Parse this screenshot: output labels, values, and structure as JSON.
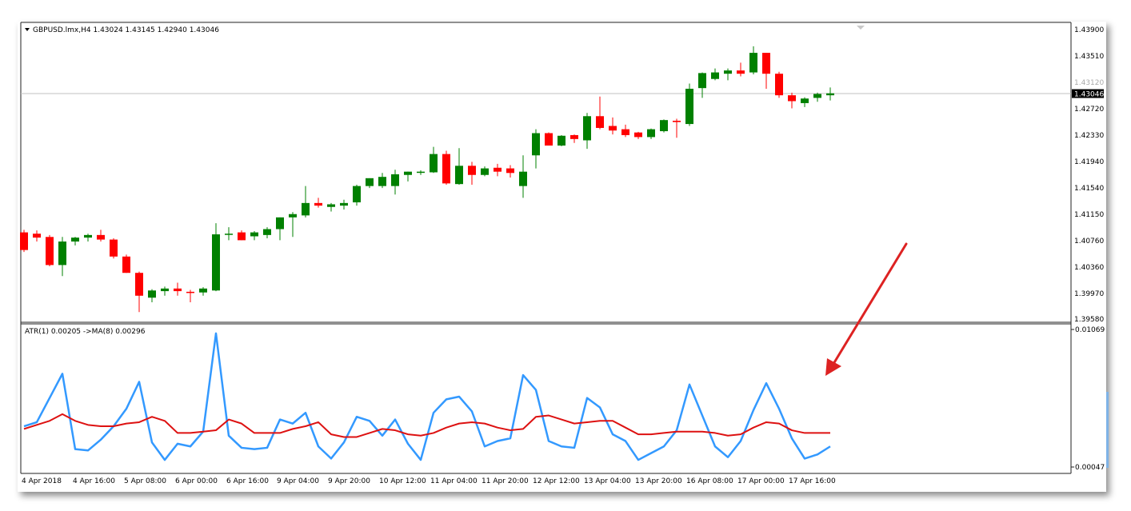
{
  "window": {
    "symbol_header": "GBPUSD.lmx,H4  1.43024 1.43145 1.42940 1.43046"
  },
  "price_axis": {
    "labels": [
      "1.43900",
      "1.43510",
      "1.42720",
      "1.42330",
      "1.41940",
      "1.41540",
      "1.41150",
      "1.40760",
      "1.40360",
      "1.39970",
      "1.39580"
    ],
    "current_price_label": "1.43046",
    "hidden_label": "1.43120"
  },
  "indicator": {
    "header": "ATR(1) 0.00205  ->MA(8) 0.00296",
    "axis_labels": [
      "0.01069",
      "0.00047"
    ]
  },
  "time_axis": {
    "labels": [
      "4 Apr 2018",
      "4 Apr 16:00",
      "5 Apr 08:00",
      "6 Apr 00:00",
      "6 Apr 16:00",
      "9 Apr 04:00",
      "9 Apr 20:00",
      "10 Apr 12:00",
      "11 Apr 04:00",
      "11 Apr 20:00",
      "12 Apr 12:00",
      "13 Apr 04:00",
      "13 Apr 20:00",
      "16 Apr 08:00",
      "17 Apr 00:00",
      "17 Apr 16:00"
    ]
  },
  "colors": {
    "bull": "#008000",
    "bear": "#ff0000",
    "atr_line": "#3399ff",
    "ma_line": "#dd1111",
    "arrow": "#dd2222"
  },
  "chart_data": [
    {
      "type": "candlestick",
      "title": "GBPUSD.lmx,H4",
      "timeframe": "H4",
      "ylim": [
        1.3958,
        1.4402
      ],
      "current_price": 1.43046,
      "ohlc": [
        [
          1.4092,
          1.4096,
          1.4062,
          1.4065
        ],
        [
          1.409,
          1.4095,
          1.4078,
          1.4084
        ],
        [
          1.4085,
          1.4088,
          1.404,
          1.4042
        ],
        [
          1.4042,
          1.4085,
          1.4025,
          1.4078
        ],
        [
          1.4078,
          1.4085,
          1.4072,
          1.4084
        ],
        [
          1.4084,
          1.409,
          1.4078,
          1.4088
        ],
        [
          1.4088,
          1.4096,
          1.4078,
          1.4081
        ],
        [
          1.4081,
          1.4083,
          1.4052,
          1.4055
        ],
        [
          1.4055,
          1.4058,
          1.403,
          1.403
        ],
        [
          1.403,
          1.4032,
          1.397,
          1.3995
        ],
        [
          1.3992,
          1.4005,
          1.3985,
          1.4003
        ],
        [
          1.4002,
          1.4009,
          1.3995,
          1.4006
        ],
        [
          1.4006,
          1.4015,
          1.3995,
          1.4002
        ],
        [
          1.4001,
          1.4004,
          1.3985,
          1.4
        ],
        [
          1.4,
          1.4008,
          1.3995,
          1.4006
        ],
        [
          1.4003,
          1.4106,
          1.4002,
          1.4089
        ],
        [
          1.4089,
          1.41,
          1.408,
          1.409
        ],
        [
          1.4092,
          1.4095,
          1.408,
          1.408
        ],
        [
          1.4086,
          1.4094,
          1.408,
          1.4092
        ],
        [
          1.4088,
          1.41,
          1.4083,
          1.4097
        ],
        [
          1.4097,
          1.4115,
          1.408,
          1.4115
        ],
        [
          1.4115,
          1.4123,
          1.4085,
          1.412
        ],
        [
          1.4118,
          1.4163,
          1.4115,
          1.4137
        ],
        [
          1.4137,
          1.4145,
          1.413,
          1.4133
        ],
        [
          1.4131,
          1.4137,
          1.4124,
          1.4135
        ],
        [
          1.4133,
          1.4142,
          1.4127,
          1.4137
        ],
        [
          1.4138,
          1.4165,
          1.4133,
          1.4163
        ],
        [
          1.4163,
          1.4175,
          1.416,
          1.4175
        ],
        [
          1.4163,
          1.4183,
          1.416,
          1.4177
        ],
        [
          1.4163,
          1.4188,
          1.415,
          1.4181
        ],
        [
          1.418,
          1.4185,
          1.417,
          1.4185
        ],
        [
          1.4184,
          1.4187,
          1.418,
          1.4185
        ],
        [
          1.4184,
          1.4223,
          1.4183,
          1.4212
        ],
        [
          1.4212,
          1.4217,
          1.4165,
          1.4167
        ],
        [
          1.4166,
          1.4221,
          1.4165,
          1.4194
        ],
        [
          1.4194,
          1.42,
          1.4165,
          1.418
        ],
        [
          1.418,
          1.4193,
          1.4178,
          1.419
        ],
        [
          1.4191,
          1.4197,
          1.4178,
          1.4185
        ],
        [
          1.419,
          1.4195,
          1.4176,
          1.4183
        ],
        [
          1.4163,
          1.421,
          1.4145,
          1.4185
        ],
        [
          1.421,
          1.425,
          1.419,
          1.4244
        ],
        [
          1.4244,
          1.4245,
          1.4225,
          1.4225
        ],
        [
          1.4225,
          1.4241,
          1.4224,
          1.424
        ],
        [
          1.4241,
          1.4242,
          1.4229,
          1.4235
        ],
        [
          1.4233,
          1.4275,
          1.422,
          1.427
        ],
        [
          1.427,
          1.43,
          1.425,
          1.4252
        ],
        [
          1.4255,
          1.4268,
          1.4242,
          1.4248
        ],
        [
          1.425,
          1.4257,
          1.4238,
          1.4241
        ],
        [
          1.4245,
          1.4246,
          1.4235,
          1.4238
        ],
        [
          1.4238,
          1.4251,
          1.4235,
          1.425
        ],
        [
          1.4247,
          1.4265,
          1.4245,
          1.4264
        ],
        [
          1.4263,
          1.4266,
          1.4237,
          1.4261
        ],
        [
          1.4258,
          1.432,
          1.4255,
          1.4312
        ],
        [
          1.4313,
          1.4337,
          1.4298,
          1.4336
        ],
        [
          1.4327,
          1.4343,
          1.4325,
          1.4337
        ],
        [
          1.4335,
          1.4343,
          1.4325,
          1.434
        ],
        [
          1.434,
          1.4352,
          1.4331,
          1.4335
        ],
        [
          1.4337,
          1.4377,
          1.4334,
          1.4367
        ],
        [
          1.4367,
          1.4367,
          1.4312,
          1.4335
        ],
        [
          1.4335,
          1.4338,
          1.4298,
          1.4302
        ],
        [
          1.4302,
          1.4306,
          1.4282,
          1.4293
        ],
        [
          1.429,
          1.4299,
          1.4284,
          1.4297
        ],
        [
          1.4298,
          1.4306,
          1.4292,
          1.4304
        ],
        [
          1.4302,
          1.4314,
          1.4294,
          1.4305
        ]
      ]
    },
    {
      "type": "line",
      "title": "ATR(1) 0.00205  ->MA(8) 0.00296",
      "ylim": [
        0.00047,
        0.01069
      ],
      "series": [
        {
          "name": "ATR(1)",
          "values": [
            0.0035,
            0.0038,
            0.0056,
            0.0074,
            0.0018,
            0.0017,
            0.0025,
            0.0035,
            0.0048,
            0.0068,
            0.0023,
            0.001,
            0.0022,
            0.002,
            0.0031,
            0.0104,
            0.0028,
            0.0019,
            0.0018,
            0.0019,
            0.004,
            0.0037,
            0.0045,
            0.002,
            0.0011,
            0.0023,
            0.0042,
            0.0039,
            0.0028,
            0.004,
            0.0022,
            0.001,
            0.0045,
            0.0055,
            0.0057,
            0.0046,
            0.002,
            0.0024,
            0.0026,
            0.0073,
            0.0062,
            0.0024,
            0.002,
            0.0019,
            0.0056,
            0.0049,
            0.0029,
            0.0024,
            0.001,
            0.0015,
            0.002,
            0.0032,
            0.0066,
            0.0043,
            0.002,
            0.0012,
            0.0024,
            0.0047,
            0.0067,
            0.0048,
            0.0026,
            0.0011,
            0.0014,
            0.002
          ]
        },
        {
          "name": "MA(8)",
          "values": [
            0.0033,
            0.0036,
            0.0039,
            0.0044,
            0.0039,
            0.0036,
            0.0035,
            0.0035,
            0.0037,
            0.0038,
            0.0042,
            0.0039,
            0.003,
            0.003,
            0.0031,
            0.0032,
            0.004,
            0.0037,
            0.003,
            0.003,
            0.003,
            0.0033,
            0.0035,
            0.0038,
            0.0029,
            0.0027,
            0.0027,
            0.003,
            0.0033,
            0.0032,
            0.0029,
            0.0028,
            0.003,
            0.0034,
            0.0037,
            0.0038,
            0.0037,
            0.0034,
            0.0032,
            0.0033,
            0.0042,
            0.0043,
            0.004,
            0.0037,
            0.0038,
            0.0039,
            0.0039,
            0.0034,
            0.0029,
            0.0029,
            0.003,
            0.0031,
            0.0031,
            0.0031,
            0.003,
            0.0028,
            0.0029,
            0.0034,
            0.0038,
            0.0037,
            0.0032,
            0.003,
            0.003,
            0.003
          ]
        }
      ]
    }
  ]
}
